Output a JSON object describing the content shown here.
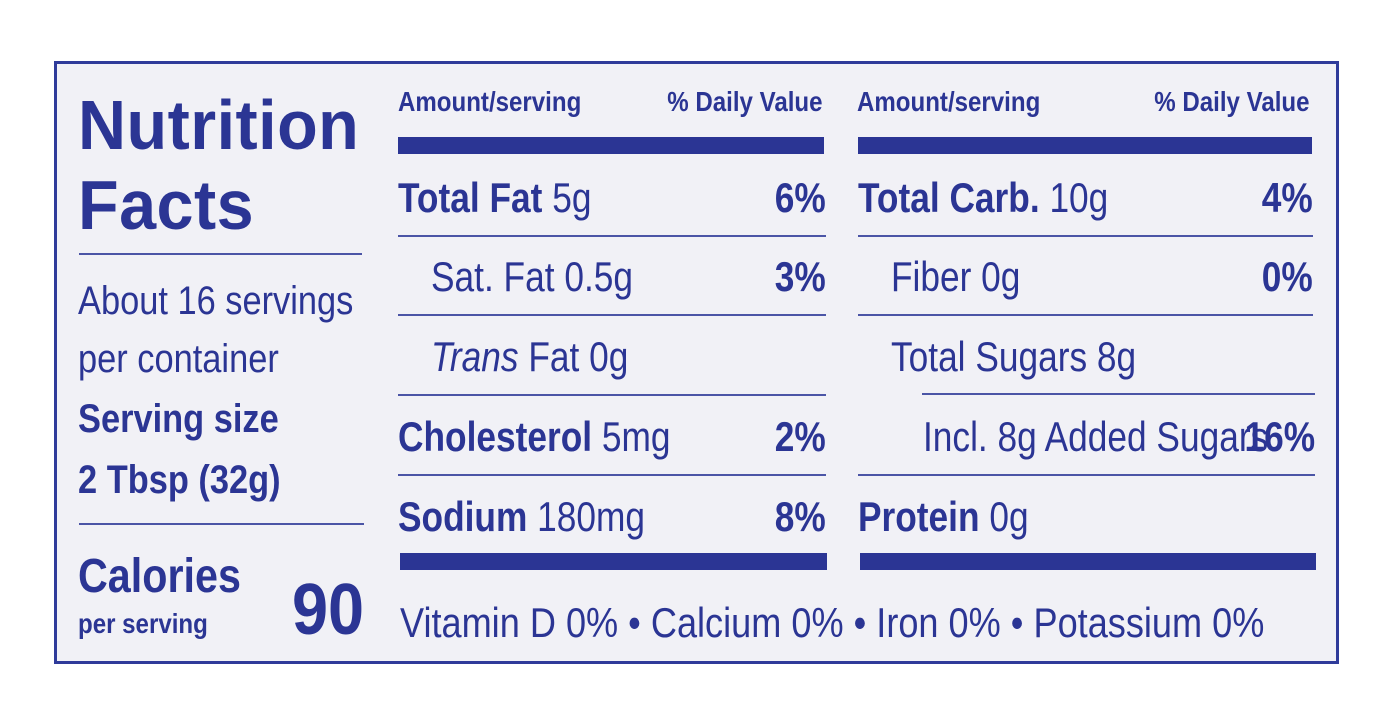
{
  "title_line1": "Nutrition",
  "title_line2": "Facts",
  "servings_line1": "About 16 servings",
  "servings_line2": "per container",
  "serving_size_label": "Serving size",
  "serving_size_value": "2 Tbsp (32g)",
  "calories_label": "Calories",
  "calories_sub": "per serving",
  "calories_value": "90",
  "col_header_amount": "Amount/serving",
  "col_header_dv": "% Daily Value",
  "left_rows": [
    {
      "name": "Total Fat",
      "amount": "5g",
      "dv": "6%"
    },
    {
      "name": "Sat. Fat 0.5g",
      "amount": "",
      "dv": "3%"
    },
    {
      "name_italic": "Trans",
      "name": " Fat 0g",
      "amount": "",
      "dv": ""
    },
    {
      "name": "Cholesterol",
      "amount": "5mg",
      "dv": "2%"
    },
    {
      "name": "Sodium",
      "amount": "180mg",
      "dv": "8%"
    }
  ],
  "right_rows": [
    {
      "name": "Total Carb.",
      "amount": "10g",
      "dv": "4%"
    },
    {
      "name": "Fiber 0g",
      "amount": "",
      "dv": "0%"
    },
    {
      "name": "Total Sugars 8g",
      "amount": "",
      "dv": ""
    },
    {
      "name": "Incl. 8g Added Sugars",
      "amount": "",
      "dv": "16%"
    },
    {
      "name": "Protein",
      "amount": "0g",
      "dv": ""
    }
  ],
  "vitamins_line": "Vitamin D 0% • Calcium 0% • Iron 0% • Potassium 0%",
  "colors": {
    "ink": "#2b3594",
    "panel": "#f1f1f6",
    "border": "#2f3b9a"
  }
}
